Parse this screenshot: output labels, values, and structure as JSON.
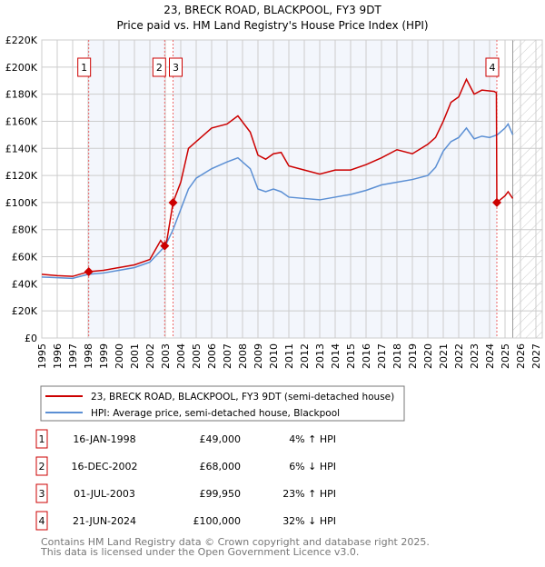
{
  "chart_data": {
    "type": "line",
    "title": "23, BRECK ROAD, BLACKPOOL, FY3 9DT",
    "subtitle": "Price paid vs. HM Land Registry's House Price Index (HPI)",
    "xlim": [
      1995,
      2027
    ],
    "ylim": [
      0,
      220000
    ],
    "y_ticks": [
      {
        "v": 0,
        "label": "£0"
      },
      {
        "v": 20000,
        "label": "£20K"
      },
      {
        "v": 40000,
        "label": "£40K"
      },
      {
        "v": 60000,
        "label": "£60K"
      },
      {
        "v": 80000,
        "label": "£80K"
      },
      {
        "v": 100000,
        "label": "£100K"
      },
      {
        "v": 120000,
        "label": "£120K"
      },
      {
        "v": 140000,
        "label": "£140K"
      },
      {
        "v": 160000,
        "label": "£160K"
      },
      {
        "v": 180000,
        "label": "£180K"
      },
      {
        "v": 200000,
        "label": "£200K"
      },
      {
        "v": 220000,
        "label": "£220K"
      }
    ],
    "x_ticks": [
      "1995",
      "1996",
      "1997",
      "1998",
      "1999",
      "2000",
      "2001",
      "2002",
      "2003",
      "2004",
      "2005",
      "2006",
      "2007",
      "2008",
      "2009",
      "2010",
      "2011",
      "2012",
      "2013",
      "2014",
      "2015",
      "2016",
      "2017",
      "2018",
      "2019",
      "2020",
      "2021",
      "2022",
      "2023",
      "2024",
      "2025",
      "2026",
      "2027"
    ],
    "grid": true,
    "forecast_from": 2025.5,
    "series": [
      {
        "name": "23, BRECK ROAD, BLACKPOOL, FY3 9DT (semi-detached house)",
        "color": "#cc0000",
        "x": [
          1995,
          1996,
          1997,
          1998.04,
          1999,
          2000,
          2001,
          2002,
          2002.7,
          2002.96,
          2003.1,
          2003.5,
          2004,
          2004.5,
          2005,
          2006,
          2007,
          2007.7,
          2008.5,
          2009,
          2009.5,
          2010,
          2010.5,
          2011,
          2012,
          2013,
          2014,
          2015,
          2016,
          2017,
          2018,
          2019,
          2020,
          2020.5,
          2021,
          2021.5,
          2022,
          2022.5,
          2023,
          2023.5,
          2024.3,
          2024.44,
          2024.47,
          2025,
          2025.2,
          2025.5
        ],
        "y": [
          47000,
          46000,
          45500,
          49000,
          50000,
          52000,
          54000,
          58000,
          72000,
          68000,
          72000,
          99950,
          115000,
          140000,
          145000,
          155000,
          158000,
          164000,
          152000,
          135000,
          132000,
          136000,
          137000,
          127000,
          124000,
          121000,
          124000,
          124000,
          128000,
          133000,
          139000,
          136000,
          143000,
          148000,
          160000,
          174000,
          178000,
          191000,
          180000,
          183000,
          182000,
          181000,
          100000,
          105000,
          108000,
          103000
        ]
      },
      {
        "name": "HPI: Average price, semi-detached house, Blackpool",
        "color": "#5b8fd4",
        "x": [
          1995,
          1996,
          1997,
          1998,
          1999,
          2000,
          2001,
          2002,
          2003,
          2003.5,
          2004,
          2004.5,
          2005,
          2006,
          2007,
          2007.7,
          2008.5,
          2009,
          2009.5,
          2010,
          2010.5,
          2011,
          2012,
          2013,
          2014,
          2015,
          2016,
          2017,
          2018,
          2019,
          2020,
          2020.5,
          2021,
          2021.5,
          2022,
          2022.5,
          2023,
          2023.5,
          2024,
          2024.5,
          2025,
          2025.2,
          2025.5
        ],
        "y": [
          45000,
          44500,
          44000,
          47000,
          48000,
          50000,
          52000,
          56000,
          68000,
          80000,
          95000,
          110000,
          118000,
          125000,
          130000,
          133000,
          125000,
          110000,
          108000,
          110000,
          108000,
          104000,
          103000,
          102000,
          104000,
          106000,
          109000,
          113000,
          115000,
          117000,
          120000,
          126000,
          138000,
          145000,
          148000,
          155000,
          147000,
          149000,
          148000,
          150000,
          155000,
          158000,
          150000
        ]
      }
    ],
    "sales": [
      {
        "n": "1",
        "x": 1998.04,
        "price": 49000,
        "date": "16-JAN-1998",
        "price_label": "£49,000",
        "hpi": "4% ↑ HPI"
      },
      {
        "n": "2",
        "x": 2002.96,
        "price": 68000,
        "date": "16-DEC-2002",
        "price_label": "£68,000",
        "hpi": "6% ↓ HPI"
      },
      {
        "n": "3",
        "x": 2003.5,
        "price": 99950,
        "date": "01-JUL-2003",
        "price_label": "£99,950",
        "hpi": "23% ↑ HPI"
      },
      {
        "n": "4",
        "x": 2024.47,
        "price": 100000,
        "date": "21-JUN-2024",
        "price_label": "£100,000",
        "hpi": "32% ↓ HPI"
      }
    ],
    "legend": {
      "placement": "bottom",
      "entries": [
        "23, BRECK ROAD, BLACKPOOL, FY3 9DT (semi-detached house)",
        "HPI: Average price, semi-detached house, Blackpool"
      ]
    },
    "footer": [
      "Contains HM Land Registry data © Crown copyright and database right 2025.",
      "This data is licensed under the Open Government Licence v3.0."
    ]
  }
}
